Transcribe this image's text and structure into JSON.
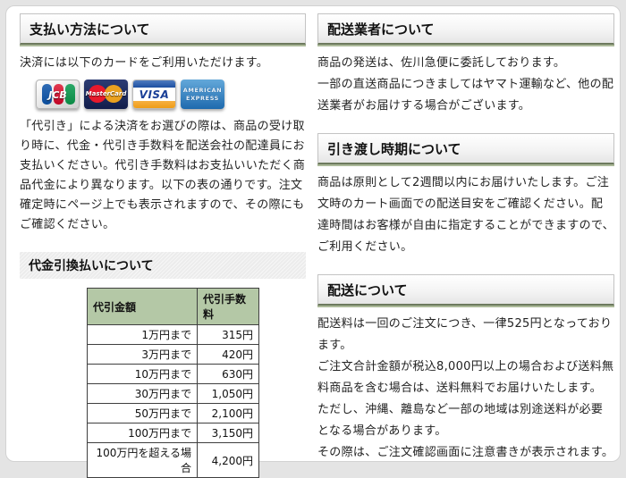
{
  "payment": {
    "title": "支払い方法について",
    "intro": "決済には以下のカードをご利用いただけます。",
    "cards": {
      "jcb_label": "JCB",
      "mastercard_label": "MasterCard",
      "visa_label": "VISA",
      "amex_label_line1": "AMERICAN",
      "amex_label_line2": "EXPRESS"
    },
    "cod_text": "「代引き」による決済をお選びの際は、商品の受け取り時に、代金・代引き手数料を配送会社の配達員にお支払いください。代引き手数料はお支払いいただく商品代金により異なります。以下の表の通りです。注文確定時にページ上でも表示されますので、その際にもご確認ください。",
    "cod_subtitle": "代金引換払いについて",
    "fee_table": {
      "headers": [
        "代引金額",
        "代引手数料"
      ],
      "rows": [
        [
          "1万円まで",
          "315円"
        ],
        [
          "3万円まで",
          "420円"
        ],
        [
          "10万円まで",
          "630円"
        ],
        [
          "30万円まで",
          "1,050円"
        ],
        [
          "50万円まで",
          "2,100円"
        ],
        [
          "100万円まで",
          "3,150円"
        ],
        [
          "100万円を超える場合",
          "4,200円"
        ]
      ]
    }
  },
  "carrier": {
    "title": "配送業者について",
    "lines": [
      "商品の発送は、佐川急便に委託しております。",
      "一部の直送商品につきましてはヤマト運輸など、他の配送業者がお届けする場合がございます。"
    ]
  },
  "delivery_time": {
    "title": "引き渡し時期について",
    "text": "商品は原則として2週間以内にお届けいたします。ご注文時のカート画面での配送目安をご確認ください。配達時間はお客様が自由に指定することができますので、ご利用ください。"
  },
  "shipping": {
    "title": "配送について",
    "lines": [
      "配送料は一回のご注文につき、一律525円となっております。",
      "ご注文合計金額が税込8,000円以上の場合および送料無料商品を含む場合は、送料無料でお届けいたします。",
      "ただし、沖縄、離島など一部の地域は別途送料が必要となる場合があります。",
      "その際は、ご注文確認画面に注意書きが表示されます。"
    ]
  },
  "colors": {
    "page_bg": "#e4e4e4",
    "panel_bg": "#ffffff",
    "header_underline_dark": "#6d7a5e",
    "header_underline_light": "#abb999",
    "table_header_bg": "#b4c8a6",
    "jcb_blue": "#0b4d9b",
    "jcb_red": "#c00425",
    "jcb_green": "#0b8a45",
    "mc_navy": "#111d4b",
    "mc_red": "#e8192c",
    "mc_orange": "#f5a81c",
    "visa_blue": "#1a3f97",
    "visa_gold": "#ef9c17",
    "amex_blue": "#1e6aae"
  }
}
